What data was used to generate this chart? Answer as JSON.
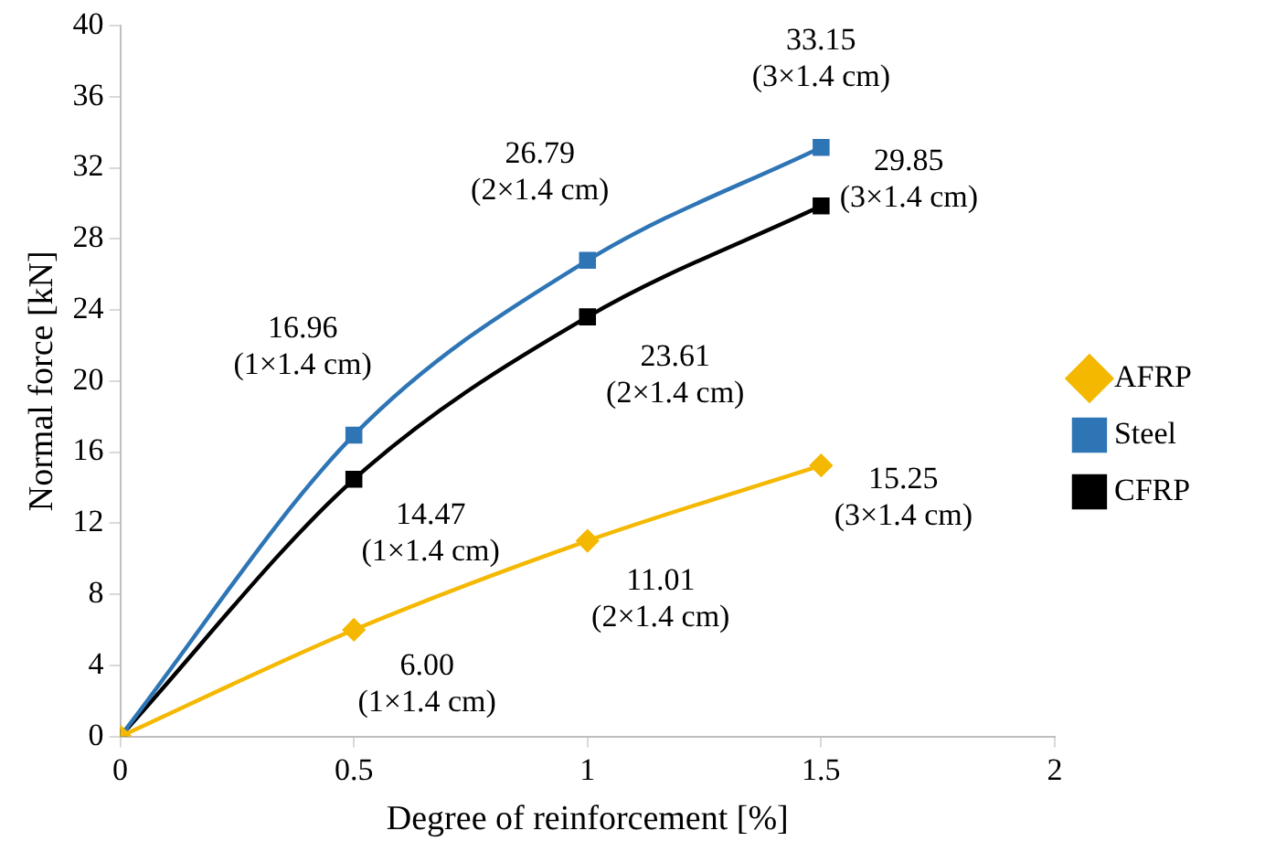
{
  "chart_data": {
    "type": "line",
    "xlabel": "Degree of reinforcement [%]",
    "ylabel": "Normal force [kN]",
    "x": [
      0,
      0.5,
      1,
      1.5
    ],
    "xlim": [
      0,
      2
    ],
    "xticks": [
      0,
      0.5,
      1,
      1.5,
      2
    ],
    "ylim": [
      0,
      40
    ],
    "yticks": [
      0,
      4,
      8,
      12,
      16,
      20,
      24,
      28,
      32,
      36,
      40
    ],
    "grid": false,
    "legend": "right",
    "series": [
      {
        "name": "AFRP",
        "color": "#f5b800",
        "marker": "diamond",
        "values": [
          0,
          6.0,
          11.01,
          15.25
        ],
        "value_labels": [
          null,
          "6.00\n(1×1.4 cm)",
          "11.01\n(2×1.4 cm)",
          "15.25\n(3×1.4 cm)"
        ]
      },
      {
        "name": "Steel",
        "color": "#2e75b6",
        "marker": "square",
        "values": [
          0,
          16.96,
          26.79,
          33.15
        ],
        "value_labels": [
          null,
          "16.96\n(1×1.4 cm)",
          "26.79\n(2×1.4 cm)",
          "33.15\n(3×1.4 cm)"
        ]
      },
      {
        "name": "CFRP",
        "color": "#000000",
        "marker": "square",
        "values": [
          0,
          14.47,
          23.61,
          29.85
        ],
        "value_labels": [
          null,
          "14.47\n(1×1.4 cm)",
          "23.61\n(2×1.4 cm)",
          "29.85\n(3×1.4 cm)"
        ]
      }
    ]
  }
}
